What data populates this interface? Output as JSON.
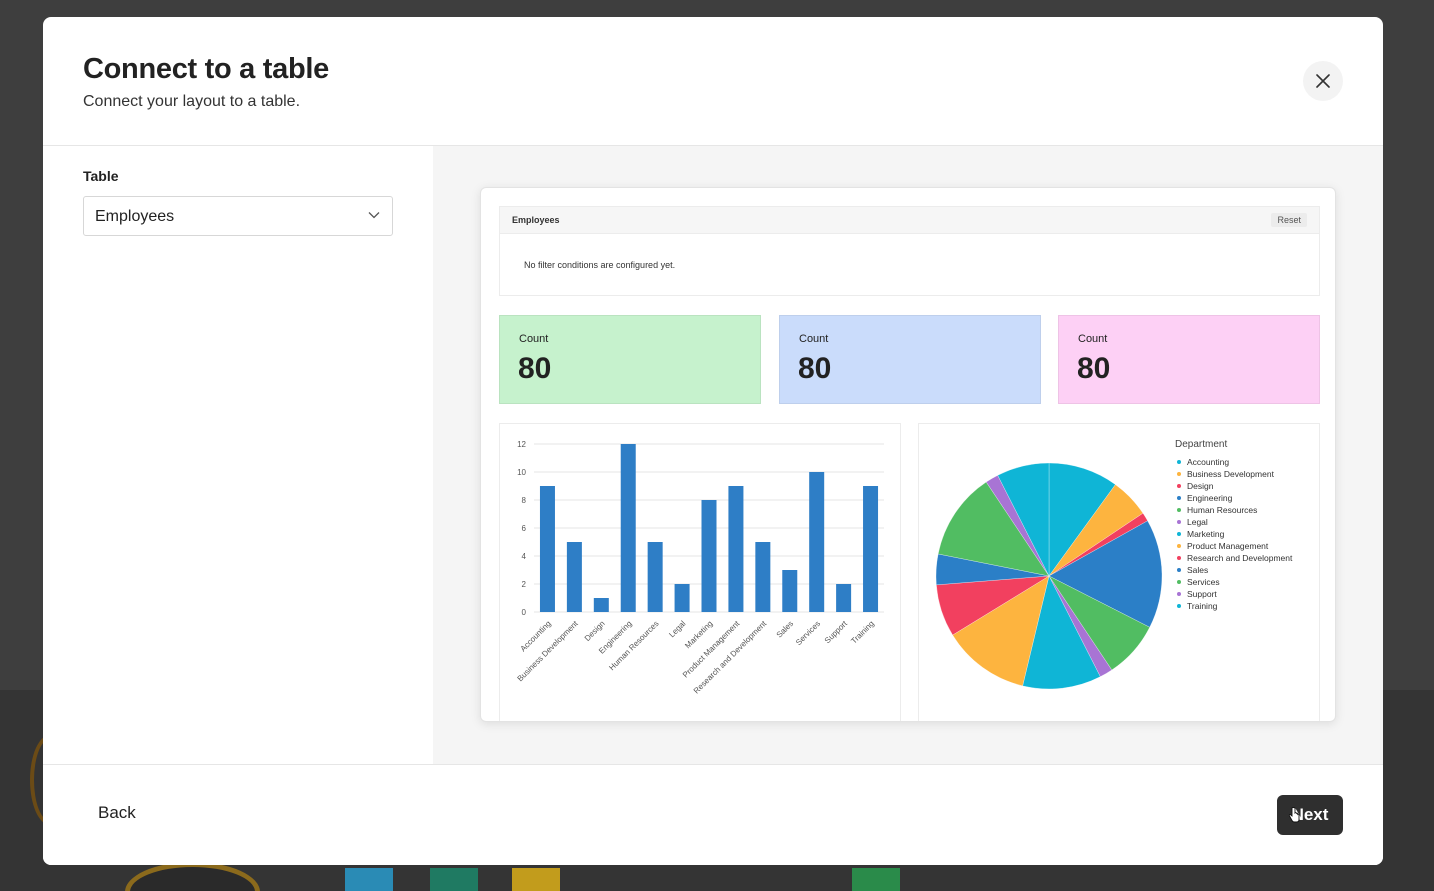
{
  "dialog": {
    "title": "Connect to a table",
    "subtitle": "Connect your layout to a table."
  },
  "form": {
    "table_label": "Table",
    "table_value": "Employees"
  },
  "preview": {
    "filter": {
      "title": "Employees",
      "reset_label": "Reset",
      "empty_text": "No filter conditions are configured yet."
    },
    "stats": [
      {
        "label": "Count",
        "value": "80",
        "color": "#c6f2cd"
      },
      {
        "label": "Count",
        "value": "80",
        "color": "#cadcfb"
      },
      {
        "label": "Count",
        "value": "80",
        "color": "#fdd0f5"
      }
    ],
    "legend_title": "Department"
  },
  "footer": {
    "back_label": "Back",
    "next_label": "Next"
  },
  "chart_data": [
    {
      "type": "bar",
      "categories": [
        "Accounting",
        "Business Development",
        "Design",
        "Engineering",
        "Human Resources",
        "Legal",
        "Marketing",
        "Product Management",
        "Research and Development",
        "Sales",
        "Services",
        "Support",
        "Training"
      ],
      "values": [
        9,
        5,
        1,
        12,
        5,
        2,
        8,
        9,
        5,
        3,
        10,
        2,
        9
      ],
      "ylim": [
        0,
        12
      ],
      "yticks": [
        "0",
        "2",
        "4",
        "6",
        "8",
        "10",
        "12"
      ],
      "grid": true,
      "color": "#2e7ec6"
    },
    {
      "type": "pie",
      "legend_title": "Department",
      "legend_position": "right",
      "slices": [
        {
          "label": "Accounting",
          "value": 8,
          "color": "#0fb5d6"
        },
        {
          "label": "Business Development",
          "value": 4.5,
          "color": "#fdb43f"
        },
        {
          "label": "Design",
          "value": 1,
          "color": "#f2405f"
        },
        {
          "label": "Engineering",
          "value": 12.5,
          "color": "#2b7fc7"
        },
        {
          "label": "Human Resources",
          "value": 6.5,
          "color": "#51bd62"
        },
        {
          "label": "Legal",
          "value": 1.5,
          "color": "#a874d4"
        },
        {
          "label": "Marketing",
          "value": 9,
          "color": "#0fb5d6"
        },
        {
          "label": "Product Management",
          "value": 10,
          "color": "#fdb43f"
        },
        {
          "label": "Research and Development",
          "value": 6,
          "color": "#f2405f"
        },
        {
          "label": "Sales",
          "value": 3.5,
          "color": "#2b7fc7"
        },
        {
          "label": "Services",
          "value": 10,
          "color": "#51bd62"
        },
        {
          "label": "Support",
          "value": 1.5,
          "color": "#a874d4"
        },
        {
          "label": "Training",
          "value": 6,
          "color": "#0fb5d6"
        }
      ]
    }
  ]
}
